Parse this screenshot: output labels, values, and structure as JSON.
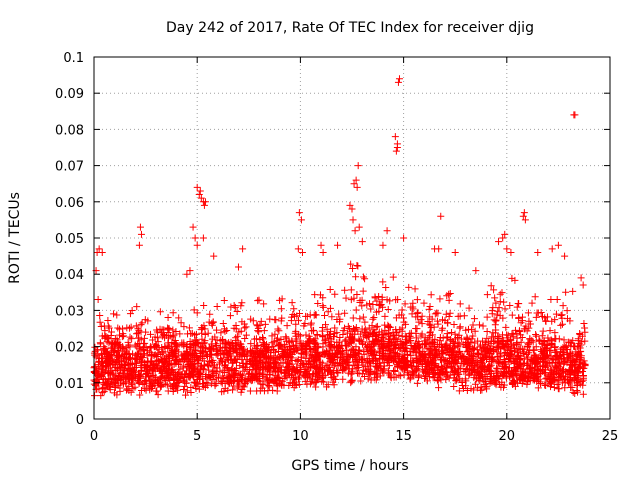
{
  "chart_data": {
    "type": "scatter",
    "title": "Day 242 of 2017, Rate Of TEC Index for receiver djig",
    "xlabel": "GPS time / hours",
    "ylabel": "ROTI / TECUs",
    "xlim": [
      0,
      25
    ],
    "ylim": [
      0,
      0.1
    ],
    "xticks": [
      0,
      5,
      10,
      15,
      20,
      25
    ],
    "xtick_labels": [
      "0",
      "5",
      "10",
      "15",
      "20",
      "25"
    ],
    "yticks": [
      0,
      0.01,
      0.02,
      0.03,
      0.04,
      0.05,
      0.06,
      0.07,
      0.08,
      0.09,
      0.1
    ],
    "ytick_labels": [
      "0",
      "0.01",
      "0.02",
      "0.03",
      "0.04",
      "0.05",
      "0.06",
      "0.07",
      "0.08",
      "0.09",
      "0.1"
    ],
    "grid": true,
    "marker": "+",
    "series": [
      {
        "name": "ROTI",
        "color": "#ff0000",
        "outliers": [
          [
            0.1,
            0.041
          ],
          [
            0.15,
            0.046
          ],
          [
            0.25,
            0.047
          ],
          [
            0.4,
            0.046
          ],
          [
            0.2,
            0.033
          ],
          [
            2.25,
            0.053
          ],
          [
            2.3,
            0.051
          ],
          [
            2.2,
            0.048
          ],
          [
            4.5,
            0.04
          ],
          [
            4.65,
            0.041
          ],
          [
            4.8,
            0.053
          ],
          [
            4.9,
            0.05
          ],
          [
            5.0,
            0.048
          ],
          [
            5.0,
            0.064
          ],
          [
            5.1,
            0.062
          ],
          [
            5.15,
            0.063
          ],
          [
            5.2,
            0.061
          ],
          [
            5.3,
            0.06
          ],
          [
            5.35,
            0.059
          ],
          [
            5.4,
            0.06
          ],
          [
            5.3,
            0.05
          ],
          [
            5.8,
            0.045
          ],
          [
            7.2,
            0.047
          ],
          [
            7.0,
            0.042
          ],
          [
            9.95,
            0.057
          ],
          [
            10.05,
            0.055
          ],
          [
            9.9,
            0.047
          ],
          [
            10.1,
            0.046
          ],
          [
            11.0,
            0.048
          ],
          [
            11.1,
            0.046
          ],
          [
            11.8,
            0.048
          ],
          [
            12.4,
            0.059
          ],
          [
            12.5,
            0.058
          ],
          [
            12.6,
            0.065
          ],
          [
            12.7,
            0.066
          ],
          [
            12.75,
            0.064
          ],
          [
            12.8,
            0.07
          ],
          [
            12.55,
            0.055
          ],
          [
            12.65,
            0.052
          ],
          [
            12.85,
            0.053
          ],
          [
            13.0,
            0.049
          ],
          [
            14.6,
            0.078
          ],
          [
            14.7,
            0.076
          ],
          [
            14.65,
            0.074
          ],
          [
            14.7,
            0.075
          ],
          [
            14.75,
            0.093
          ],
          [
            14.8,
            0.094
          ],
          [
            14.2,
            0.052
          ],
          [
            14.0,
            0.048
          ],
          [
            15.0,
            0.05
          ],
          [
            16.5,
            0.047
          ],
          [
            16.7,
            0.047
          ],
          [
            16.8,
            0.056
          ],
          [
            17.5,
            0.046
          ],
          [
            18.5,
            0.041
          ],
          [
            19.6,
            0.049
          ],
          [
            19.8,
            0.05
          ],
          [
            19.9,
            0.051
          ],
          [
            20.0,
            0.047
          ],
          [
            20.2,
            0.046
          ],
          [
            20.8,
            0.056
          ],
          [
            20.85,
            0.057
          ],
          [
            20.9,
            0.055
          ],
          [
            21.5,
            0.046
          ],
          [
            22.2,
            0.047
          ],
          [
            22.5,
            0.048
          ],
          [
            22.8,
            0.045
          ],
          [
            23.25,
            0.084
          ],
          [
            23.3,
            0.084
          ],
          [
            23.6,
            0.039
          ],
          [
            23.7,
            0.037
          ]
        ],
        "band_profile": [
          [
            0,
            0.009,
            0.03
          ],
          [
            1,
            0.01,
            0.03
          ],
          [
            2,
            0.01,
            0.032
          ],
          [
            3,
            0.01,
            0.03
          ],
          [
            4,
            0.01,
            0.03
          ],
          [
            5,
            0.011,
            0.032
          ],
          [
            6,
            0.011,
            0.033
          ],
          [
            7,
            0.011,
            0.033
          ],
          [
            8,
            0.011,
            0.033
          ],
          [
            9,
            0.011,
            0.034
          ],
          [
            10,
            0.012,
            0.035
          ],
          [
            11,
            0.012,
            0.036
          ],
          [
            12,
            0.013,
            0.04
          ],
          [
            12.7,
            0.014,
            0.048
          ],
          [
            13,
            0.014,
            0.042
          ],
          [
            14,
            0.014,
            0.04
          ],
          [
            15,
            0.014,
            0.04
          ],
          [
            16,
            0.013,
            0.038
          ],
          [
            17,
            0.012,
            0.036
          ],
          [
            18,
            0.011,
            0.034
          ],
          [
            19,
            0.011,
            0.036
          ],
          [
            20,
            0.012,
            0.04
          ],
          [
            21,
            0.011,
            0.036
          ],
          [
            22,
            0.011,
            0.036
          ],
          [
            23,
            0.011,
            0.037
          ],
          [
            23.8,
            0.01,
            0.033
          ]
        ],
        "x_range_hours": [
          0,
          23.8
        ],
        "band_point_count": 3600
      }
    ]
  }
}
